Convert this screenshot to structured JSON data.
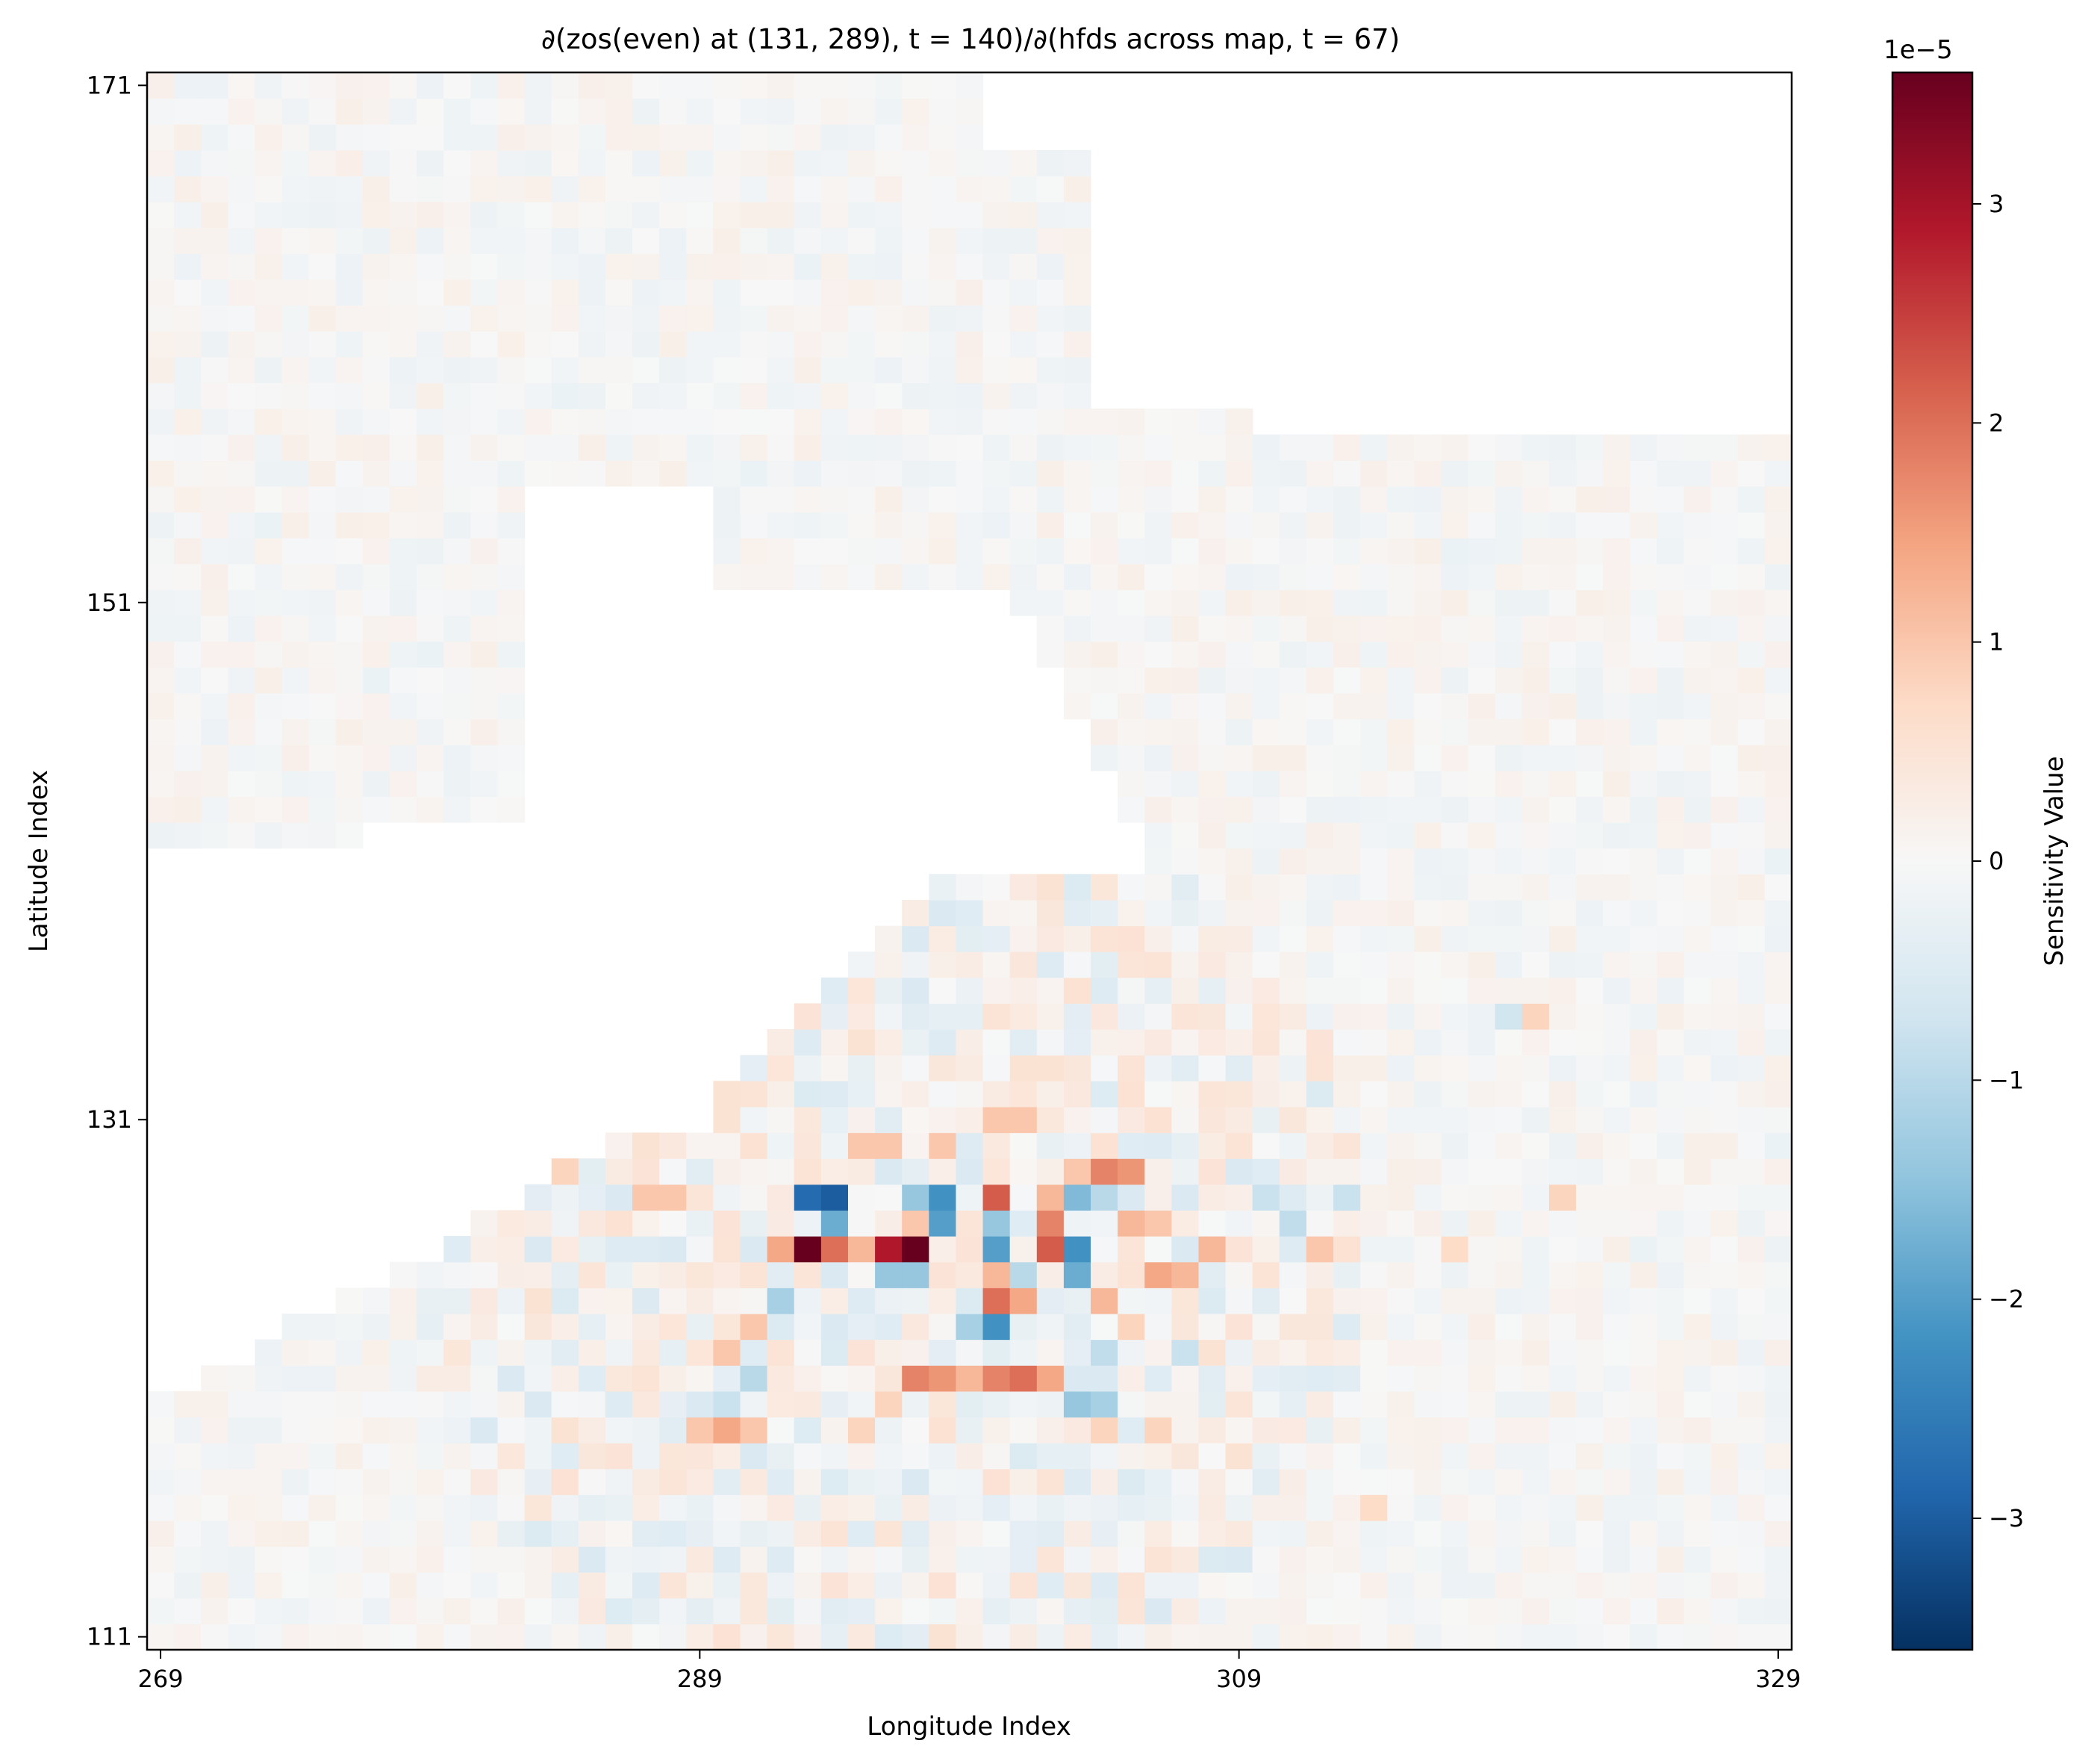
{
  "chart_data": {
    "type": "heatmap",
    "title": "∂(zos(even) at (131, 289), t = 140)/∂(hfds across map, t = 67)",
    "xlabel": "Longitude Index",
    "ylabel": "Latitude Index",
    "x_range": [
      269,
      329
    ],
    "y_range": [
      111,
      171
    ],
    "x_ticks": [
      "269",
      "289",
      "309",
      "329"
    ],
    "y_ticks": [
      "171",
      "151",
      "131",
      "111"
    ],
    "colorbar": {
      "label": "Sensitivity Value",
      "exponent": "1e−5",
      "range": [
        -3.6,
        3.6
      ],
      "ticks": [
        "3",
        "2",
        "1",
        "0",
        "−1",
        "−2",
        "−3"
      ],
      "colormap": "RdBu_r",
      "colors": [
        "#053061",
        "#2166ac",
        "#4393c3",
        "#92c5de",
        "#d1e5f0",
        "#f7f7f7",
        "#fddbc7",
        "#f4a582",
        "#d6604d",
        "#b2182b",
        "#67001f"
      ]
    },
    "grid": false,
    "hotspots": [
      {
        "lon": 293,
        "lat": 126,
        "value": 3.6
      },
      {
        "lon": 297,
        "lat": 126,
        "value": 3.6
      },
      {
        "lon": 296,
        "lat": 126,
        "value": 2.9
      },
      {
        "lon": 294,
        "lat": 126,
        "value": 2.0
      },
      {
        "lon": 295,
        "lat": 126,
        "value": 1.2
      },
      {
        "lon": 292,
        "lat": 126,
        "value": 1.4
      },
      {
        "lon": 293,
        "lat": 128,
        "value": -2.8
      },
      {
        "lon": 294,
        "lat": 128,
        "value": -3.0
      },
      {
        "lon": 294,
        "lat": 127,
        "value": -1.8
      },
      {
        "lon": 297,
        "lat": 128,
        "value": -1.4
      },
      {
        "lon": 298,
        "lat": 128,
        "value": -2.2
      },
      {
        "lon": 298,
        "lat": 127,
        "value": -2.0
      },
      {
        "lon": 297,
        "lat": 127,
        "value": 1.0
      },
      {
        "lon": 300,
        "lat": 128,
        "value": 2.2
      },
      {
        "lon": 302,
        "lat": 128,
        "value": 1.2
      },
      {
        "lon": 302,
        "lat": 127,
        "value": 1.8
      },
      {
        "lon": 303,
        "lat": 128,
        "value": -1.6
      },
      {
        "lon": 300,
        "lat": 127,
        "value": -1.4
      },
      {
        "lon": 300,
        "lat": 126,
        "value": -2.0
      },
      {
        "lon": 302,
        "lat": 126,
        "value": 2.2
      },
      {
        "lon": 303,
        "lat": 125,
        "value": -1.8
      },
      {
        "lon": 303,
        "lat": 126,
        "value": -2.2
      },
      {
        "lon": 296,
        "lat": 125,
        "value": -1.4
      },
      {
        "lon": 297,
        "lat": 125,
        "value": -1.4
      },
      {
        "lon": 300,
        "lat": 125,
        "value": 1.2
      },
      {
        "lon": 301,
        "lat": 125,
        "value": -1.0
      },
      {
        "lon": 300,
        "lat": 124,
        "value": 2.0
      },
      {
        "lon": 301,
        "lat": 124,
        "value": 1.4
      },
      {
        "lon": 300,
        "lat": 123,
        "value": -2.2
      },
      {
        "lon": 299,
        "lat": 123,
        "value": -1.2
      },
      {
        "lon": 304,
        "lat": 124,
        "value": 1.2
      },
      {
        "lon": 305,
        "lat": 127,
        "value": 1.2
      },
      {
        "lon": 306,
        "lat": 127,
        "value": 1.0
      },
      {
        "lon": 306,
        "lat": 125,
        "value": 1.4
      },
      {
        "lon": 307,
        "lat": 125,
        "value": 1.2
      },
      {
        "lon": 304,
        "lat": 129,
        "value": 1.8
      },
      {
        "lon": 305,
        "lat": 129,
        "value": 1.6
      },
      {
        "lon": 303,
        "lat": 129,
        "value": 1.0
      },
      {
        "lon": 304,
        "lat": 128,
        "value": -1.0
      },
      {
        "lon": 297,
        "lat": 121,
        "value": 1.8
      },
      {
        "lon": 298,
        "lat": 121,
        "value": 1.6
      },
      {
        "lon": 299,
        "lat": 121,
        "value": 1.2
      },
      {
        "lon": 300,
        "lat": 121,
        "value": 1.8
      },
      {
        "lon": 301,
        "lat": 121,
        "value": 2.0
      },
      {
        "lon": 302,
        "lat": 121,
        "value": 1.4
      },
      {
        "lon": 303,
        "lat": 120,
        "value": -1.4
      },
      {
        "lon": 304,
        "lat": 120,
        "value": -1.2
      },
      {
        "lon": 292,
        "lat": 124,
        "value": -1.2
      },
      {
        "lon": 291,
        "lat": 123,
        "value": 1.0
      },
      {
        "lon": 290,
        "lat": 122,
        "value": 1.0
      },
      {
        "lon": 291,
        "lat": 121,
        "value": -1.0
      },
      {
        "lon": 290,
        "lat": 120,
        "value": -0.8
      },
      {
        "lon": 289,
        "lat": 119,
        "value": 1.0
      },
      {
        "lon": 290,
        "lat": 119,
        "value": 1.4
      },
      {
        "lon": 291,
        "lat": 119,
        "value": 1.0
      },
      {
        "lon": 295,
        "lat": 119,
        "value": 0.8
      },
      {
        "lon": 296,
        "lat": 120,
        "value": 0.8
      },
      {
        "lon": 308,
        "lat": 126,
        "value": 1.2
      },
      {
        "lon": 311,
        "lat": 127,
        "value": -0.9
      },
      {
        "lon": 312,
        "lat": 126,
        "value": 1.0
      },
      {
        "lon": 313,
        "lat": 128,
        "value": -0.8
      },
      {
        "lon": 310,
        "lat": 128,
        "value": -0.8
      },
      {
        "lon": 287,
        "lat": 128,
        "value": 1.0
      },
      {
        "lon": 288,
        "lat": 128,
        "value": 1.0
      },
      {
        "lon": 284,
        "lat": 129,
        "value": 0.8
      },
      {
        "lon": 304,
        "lat": 122,
        "value": -0.9
      },
      {
        "lon": 307,
        "lat": 122,
        "value": -0.8
      },
      {
        "lon": 321,
        "lat": 128,
        "value": 0.8
      },
      {
        "lon": 317,
        "lat": 126,
        "value": 0.7
      },
      {
        "lon": 320,
        "lat": 135,
        "value": 0.8
      },
      {
        "lon": 319,
        "lat": 135,
        "value": -0.7
      },
      {
        "lon": 306,
        "lat": 119,
        "value": 0.8
      },
      {
        "lon": 304,
        "lat": 119,
        "value": 0.8
      },
      {
        "lon": 301,
        "lat": 131,
        "value": 1.0
      },
      {
        "lon": 300,
        "lat": 131,
        "value": 1.0
      },
      {
        "lon": 295,
        "lat": 130,
        "value": 1.0
      },
      {
        "lon": 296,
        "lat": 130,
        "value": 1.0
      },
      {
        "lon": 298,
        "lat": 130,
        "value": 1.0
      },
      {
        "lon": 305,
        "lat": 123,
        "value": 0.8
      },
      {
        "lon": 314,
        "lat": 116,
        "value": 0.7
      }
    ]
  }
}
